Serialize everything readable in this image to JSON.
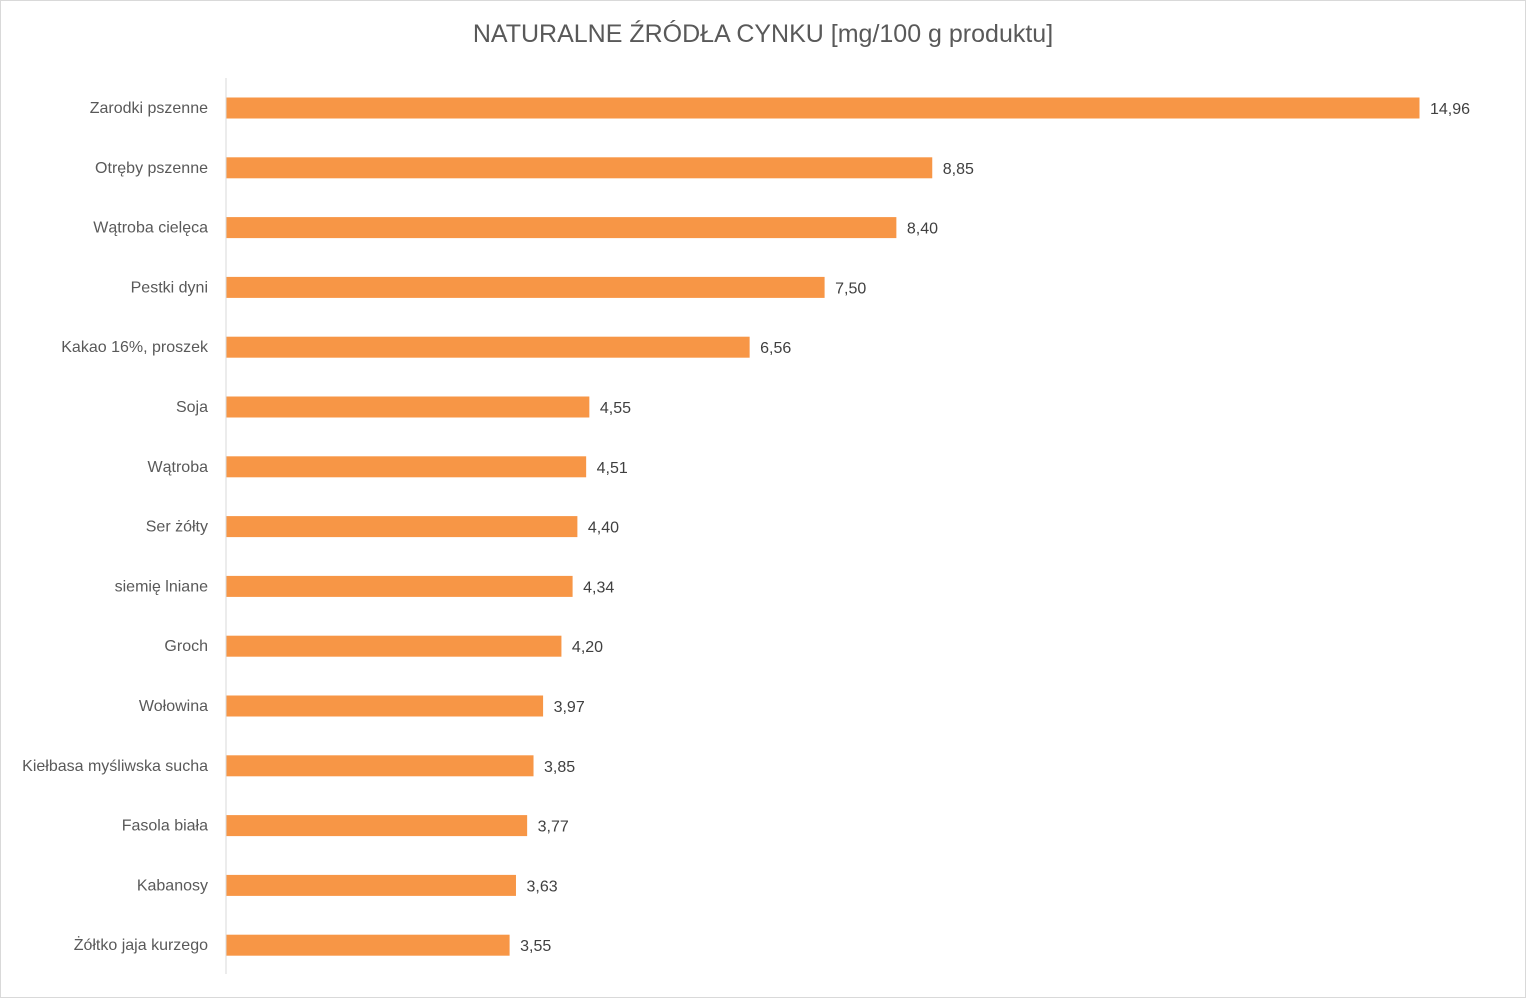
{
  "chart_data": {
    "type": "bar",
    "orientation": "horizontal",
    "title": "NATURALNE ŹRÓDŁA CYNKU [mg/100 g produktu]",
    "categories": [
      "Zarodki pszenne",
      "Otręby pszenne",
      "Wątroba cielęca",
      "Pestki dyni",
      "Kakao 16%, proszek",
      "Soja",
      "Wątroba",
      "Ser żółty",
      "siemię lniane",
      "Groch",
      "Wołowina",
      "Kiełbasa myśliwska sucha",
      "Fasola biała",
      "Kabanosy",
      "Żółtko jaja kurzego"
    ],
    "values": [
      14.96,
      8.85,
      8.4,
      7.5,
      6.56,
      4.55,
      4.51,
      4.4,
      4.34,
      4.2,
      3.97,
      3.85,
      3.77,
      3.63,
      3.55
    ],
    "value_labels": [
      "14,96",
      "8,85",
      "8,40",
      "7,50",
      "6,56",
      "4,55",
      "4,51",
      "4,40",
      "4,34",
      "4,20",
      "3,97",
      "3,85",
      "3,77",
      "3,63",
      "3,55"
    ],
    "xlim": [
      0,
      14.96
    ],
    "bar_color": "#F79646",
    "grid": false,
    "legend": "none"
  }
}
